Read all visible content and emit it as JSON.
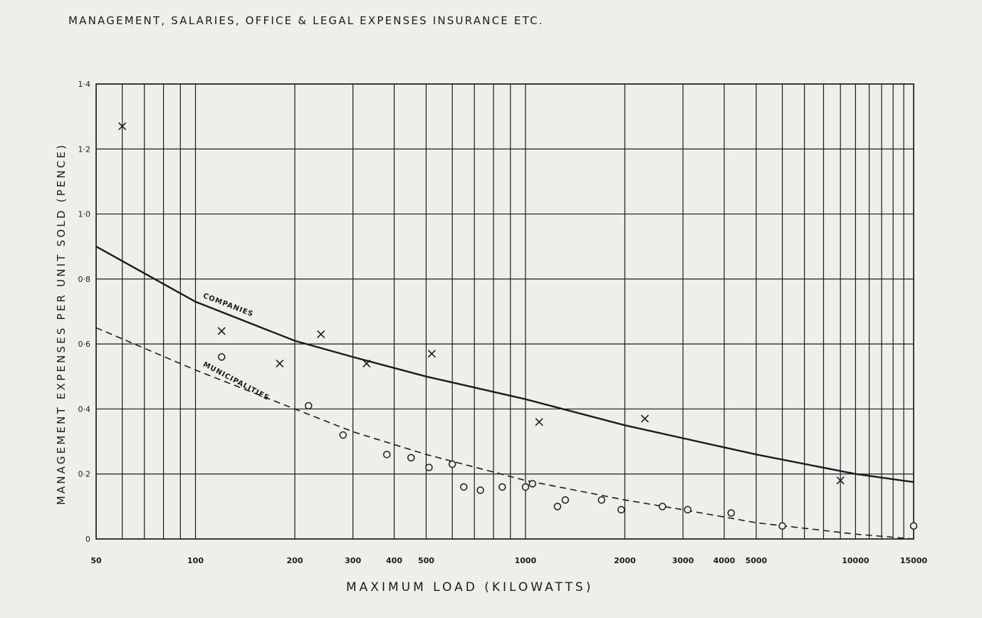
{
  "title": "MANAGEMENT, SALARIES, OFFICE & LEGAL EXPENSES INSURANCE ETC.",
  "colors": {
    "paper": "#efeeea",
    "ink": "#1b1b1b"
  },
  "chart_data": {
    "type": "scatter",
    "title": "MANAGEMENT, SALARIES, OFFICE & LEGAL EXPENSES INSURANCE ETC.",
    "xlabel": "MAXIMUM LOAD (KILOWATTS)",
    "ylabel": "MANAGEMENT EXPENSES PER UNIT SOLD (PENCE)",
    "x_scale": "log",
    "xlim": [
      50,
      15000
    ],
    "ylim": [
      0,
      1.4
    ],
    "grid": true,
    "x_ticks": [
      {
        "value": 50,
        "label": "50"
      },
      {
        "value": 100,
        "label": "100"
      },
      {
        "value": 200,
        "label": "200"
      },
      {
        "value": 300,
        "label": "300"
      },
      {
        "value": 400,
        "label": "400"
      },
      {
        "value": 500,
        "label": "500"
      },
      {
        "value": 1000,
        "label": "1000"
      },
      {
        "value": 2000,
        "label": "2000"
      },
      {
        "value": 3000,
        "label": "3000"
      },
      {
        "value": 4000,
        "label": "4000"
      },
      {
        "value": 5000,
        "label": "5000"
      },
      {
        "value": 10000,
        "label": "10000"
      },
      {
        "value": 15000,
        "label": "15000"
      }
    ],
    "y_ticks": [
      {
        "value": 0,
        "label": "0"
      },
      {
        "value": 0.2,
        "label": "0·2"
      },
      {
        "value": 0.4,
        "label": "0·4"
      },
      {
        "value": 0.6,
        "label": "0·6"
      },
      {
        "value": 0.8,
        "label": "0·8"
      },
      {
        "value": 1.0,
        "label": "1·0"
      },
      {
        "value": 1.2,
        "label": "1·2"
      },
      {
        "value": 1.4,
        "label": "1·4"
      }
    ],
    "series": [
      {
        "name": "COMPANIES",
        "marker": "x",
        "curve_style": "solid",
        "curve": [
          [
            50,
            0.9
          ],
          [
            100,
            0.73
          ],
          [
            200,
            0.61
          ],
          [
            300,
            0.56
          ],
          [
            500,
            0.5
          ],
          [
            1000,
            0.43
          ],
          [
            2000,
            0.35
          ],
          [
            3000,
            0.31
          ],
          [
            5000,
            0.26
          ],
          [
            10000,
            0.2
          ],
          [
            15000,
            0.175
          ]
        ],
        "points": [
          [
            60,
            1.27
          ],
          [
            120,
            0.64
          ],
          [
            180,
            0.54
          ],
          [
            240,
            0.63
          ],
          [
            330,
            0.54
          ],
          [
            520,
            0.57
          ],
          [
            1100,
            0.36
          ],
          [
            2300,
            0.37
          ],
          [
            9000,
            0.18
          ]
        ]
      },
      {
        "name": "MUNICIPALITIES",
        "marker": "o",
        "curve_style": "dashed",
        "curve": [
          [
            50,
            0.65
          ],
          [
            100,
            0.52
          ],
          [
            200,
            0.4
          ],
          [
            300,
            0.33
          ],
          [
            500,
            0.26
          ],
          [
            1000,
            0.18
          ],
          [
            2000,
            0.12
          ],
          [
            3000,
            0.09
          ],
          [
            5000,
            0.05
          ],
          [
            10000,
            0.015
          ],
          [
            15000,
            0.0
          ]
        ],
        "points": [
          [
            120,
            0.56
          ],
          [
            220,
            0.41
          ],
          [
            280,
            0.32
          ],
          [
            380,
            0.26
          ],
          [
            450,
            0.25
          ],
          [
            510,
            0.22
          ],
          [
            600,
            0.23
          ],
          [
            650,
            0.16
          ],
          [
            730,
            0.15
          ],
          [
            850,
            0.16
          ],
          [
            1000,
            0.16
          ],
          [
            1050,
            0.17
          ],
          [
            1250,
            0.1
          ],
          [
            1320,
            0.12
          ],
          [
            1700,
            0.12
          ],
          [
            1950,
            0.09
          ],
          [
            2600,
            0.1
          ],
          [
            3100,
            0.09
          ],
          [
            4200,
            0.08
          ],
          [
            6000,
            0.04
          ],
          [
            15000,
            0.04
          ]
        ]
      }
    ]
  }
}
